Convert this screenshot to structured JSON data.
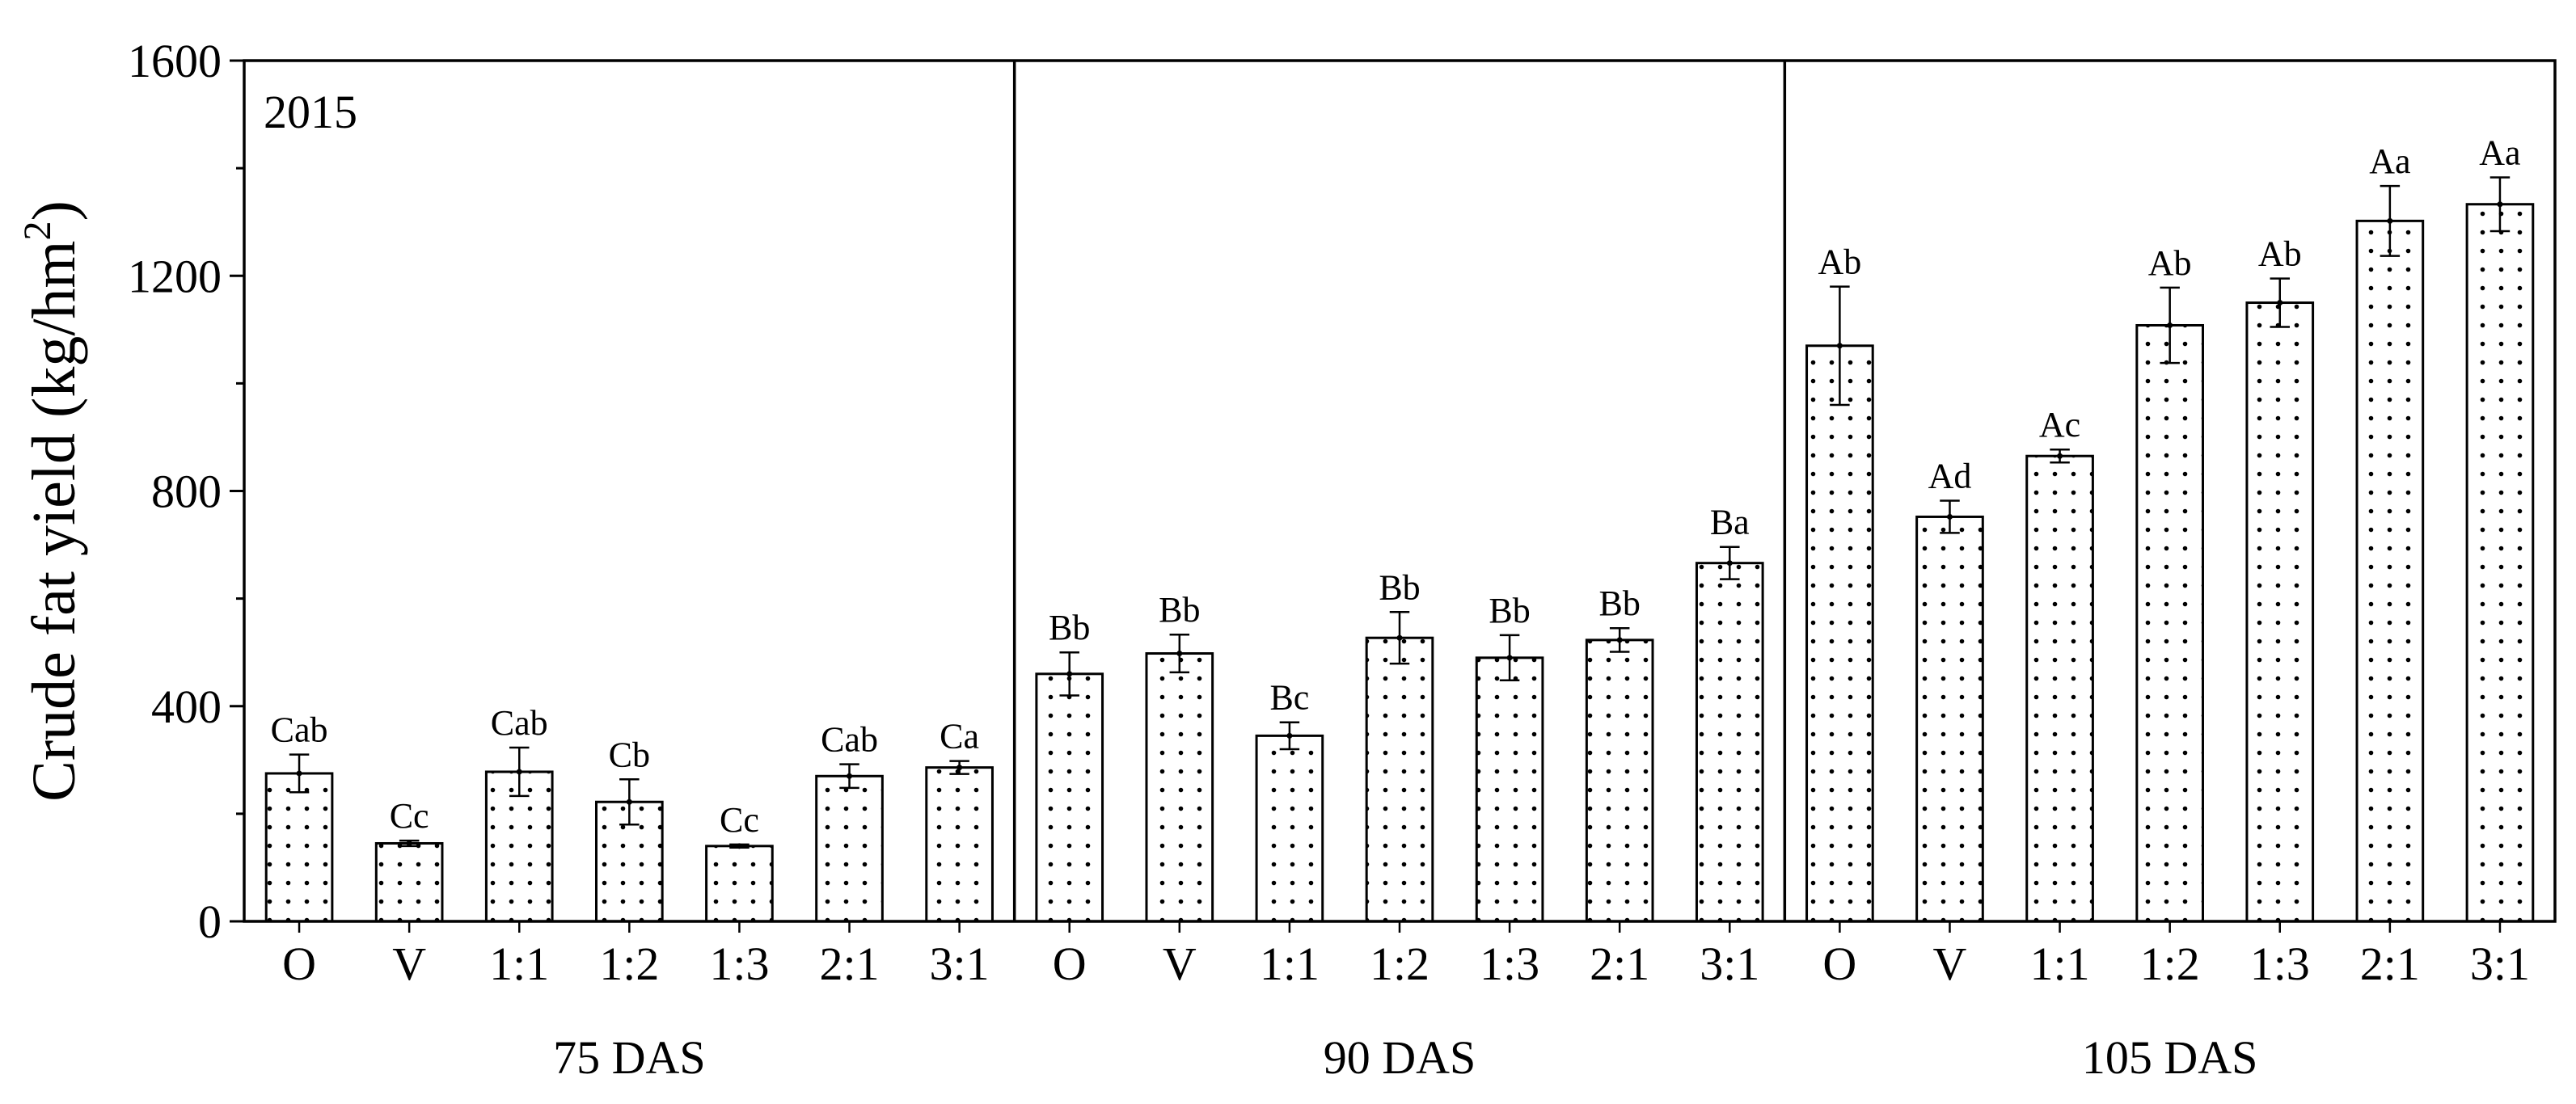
{
  "chart_data": {
    "type": "bar",
    "title": "",
    "panel_label": "2015",
    "xlabel": "",
    "ylabel": "Crude fat yield (kg/hm",
    "ylabel_sup": "2",
    "ylabel_close": ")",
    "ylim": [
      0,
      1600
    ],
    "yticks": [
      0,
      400,
      800,
      1200,
      1600
    ],
    "grid": false,
    "bar_pattern": "dots",
    "colors": {
      "bar_fill": "#ffffff",
      "bar_stroke": "#000000",
      "dot": "#000000"
    },
    "categories": [
      "O",
      "V",
      "1:1",
      "1:2",
      "1:3",
      "2:1",
      "3:1"
    ],
    "groups": [
      {
        "name": "75 DAS",
        "values": [
          275,
          145,
          278,
          222,
          140,
          270,
          286
        ],
        "errors": [
          35,
          5,
          45,
          42,
          3,
          22,
          12
        ],
        "labels": [
          "Cab",
          "Cc",
          "Cab",
          "Cb",
          "Cc",
          "Cab",
          "Ca"
        ]
      },
      {
        "name": "90 DAS",
        "values": [
          460,
          498,
          345,
          527,
          490,
          523,
          666
        ],
        "errors": [
          40,
          35,
          25,
          48,
          42,
          22,
          30
        ],
        "labels": [
          "Bb",
          "Bb",
          "Bc",
          "Bb",
          "Bb",
          "Bb",
          "Ba"
        ]
      },
      {
        "name": "105 DAS",
        "values": [
          1070,
          752,
          865,
          1108,
          1150,
          1302,
          1333
        ],
        "errors": [
          110,
          30,
          12,
          70,
          45,
          65,
          50
        ],
        "labels": [
          "Ab",
          "Ad",
          "Ac",
          "Ab",
          "Ab",
          "Aa",
          "Aa"
        ]
      }
    ]
  }
}
